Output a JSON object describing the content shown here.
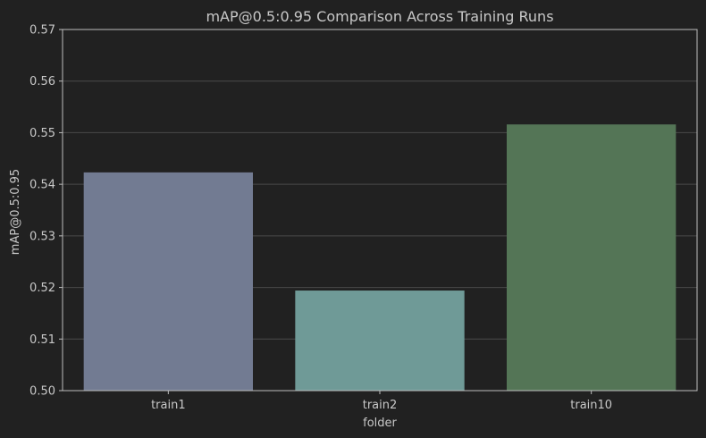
{
  "chart_data": {
    "type": "bar",
    "title": "mAP@0.5:0.95 Comparison Across Training Runs",
    "xlabel": "folder",
    "ylabel": "mAP@0.5:0.95",
    "categories": [
      "train1",
      "train2",
      "train10"
    ],
    "values": [
      0.5423,
      0.5194,
      0.5516
    ],
    "colors": [
      "#727b92",
      "#6f9a97",
      "#547556"
    ],
    "ylim": [
      0.5,
      0.57
    ],
    "yticks": [
      "0.50",
      "0.51",
      "0.52",
      "0.53",
      "0.54",
      "0.55",
      "0.56",
      "0.57"
    ],
    "grid": true
  }
}
